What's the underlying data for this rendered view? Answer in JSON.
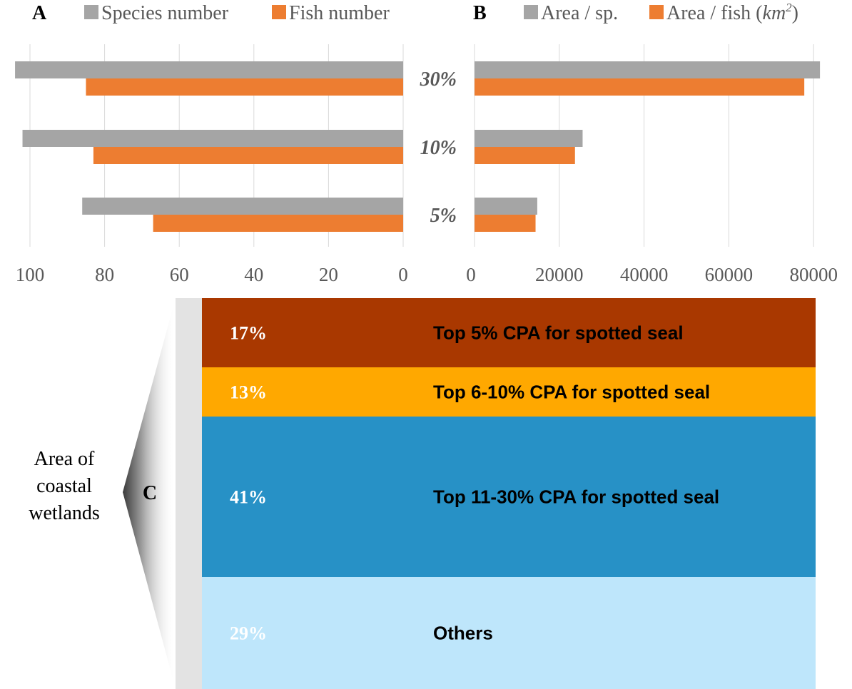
{
  "panels": {
    "a": "A",
    "b": "B",
    "c": "C"
  },
  "chart_data": [
    {
      "type": "bar",
      "orientation": "horizontal",
      "x_direction": "reversed",
      "categories": [
        "30%",
        "10%",
        "5%"
      ],
      "series": [
        {
          "name": "Species number",
          "color": "#A5A5A5",
          "values": [
            104,
            102,
            86
          ]
        },
        {
          "name": "Fish number",
          "color": "#ED7D31",
          "values": [
            85,
            83,
            67
          ]
        }
      ],
      "xlim": [
        0,
        105
      ],
      "xticks": [
        "100",
        "80",
        "60",
        "40",
        "20",
        "0"
      ],
      "grid": true,
      "legend": "top"
    },
    {
      "type": "bar",
      "orientation": "horizontal",
      "categories": [
        "30%",
        "10%",
        "5%"
      ],
      "series": [
        {
          "name": "Area / sp.",
          "color": "#A5A5A5",
          "values": [
            81500,
            25500,
            14800
          ]
        },
        {
          "name": "Area / fish",
          "unit": "km2",
          "color": "#ED7D31",
          "values": [
            77800,
            23700,
            14400
          ]
        }
      ],
      "xlim": [
        0,
        82000
      ],
      "xticks": [
        "0",
        "20000",
        "40000",
        "60000",
        "80000"
      ],
      "grid": true,
      "legend": "top"
    },
    {
      "type": "bar",
      "stacked": true,
      "category": "Area of coastal wetlands",
      "segments": [
        {
          "pct": "17%",
          "value": 17,
          "label": "Top 5% CPA for spotted seal",
          "color": "#A93800"
        },
        {
          "pct": "13%",
          "value": 13,
          "label": "Top 6-10% CPA for spotted seal",
          "color": "#FFA800"
        },
        {
          "pct": "41%",
          "value": 41,
          "label": "Top 11-30% CPA for spotted seal",
          "color": "#2791C6"
        },
        {
          "pct": "29%",
          "value": 29,
          "label": "Others",
          "color": "#BEE6FB"
        }
      ]
    }
  ]
}
